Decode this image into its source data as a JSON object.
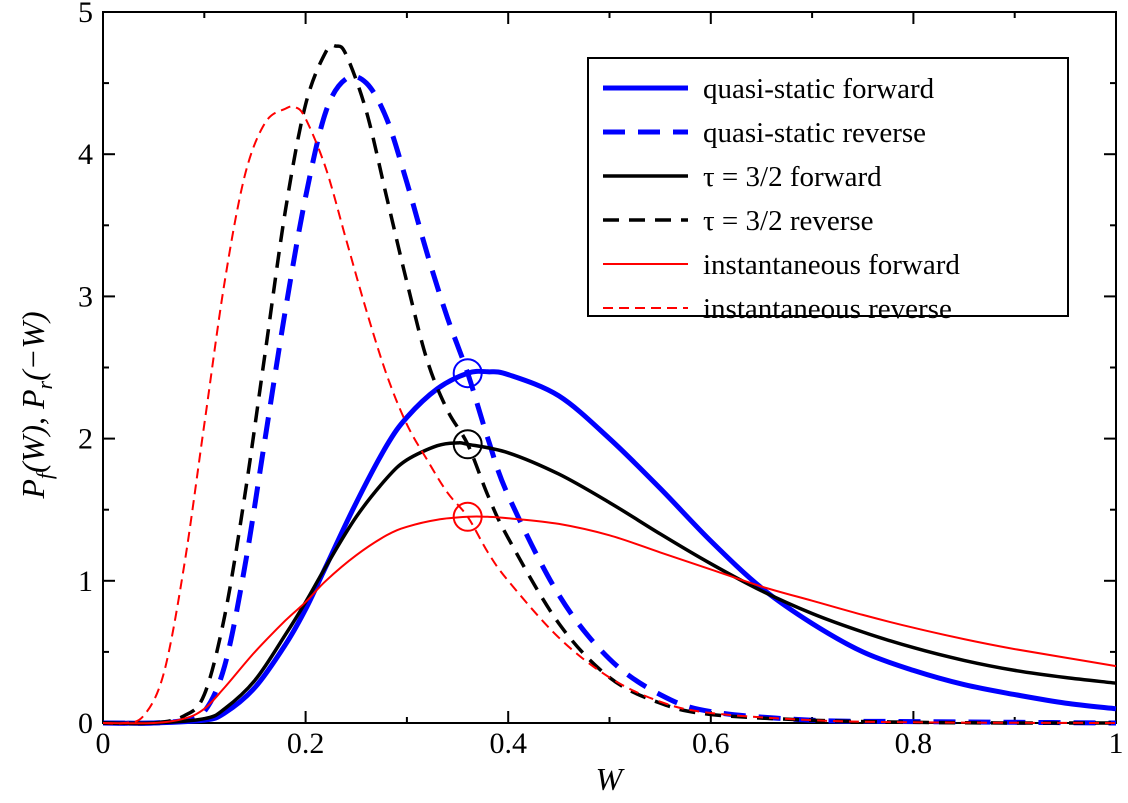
{
  "chart_data": {
    "type": "line",
    "xlabel": "W",
    "ylabel_parts": [
      "P",
      "f",
      "(W),  ",
      "P",
      "r",
      "(−W)"
    ],
    "xlim": [
      0,
      1
    ],
    "ylim": [
      0,
      5
    ],
    "x_ticks": [
      0,
      0.2,
      0.4,
      0.6,
      0.8,
      1
    ],
    "x_tick_labels": [
      "0",
      "0.2",
      "0.4",
      "0.6",
      "0.8",
      "1"
    ],
    "y_ticks": [
      0,
      1,
      2,
      3,
      4,
      5
    ],
    "y_tick_labels": [
      "0",
      "1",
      "2",
      "3",
      "4",
      "5"
    ],
    "grid": false,
    "legend_position": "top-right",
    "series": [
      {
        "name": "quasi-static forward",
        "color": "#0000ff",
        "style": "solid",
        "width": "thick",
        "x": [
          0,
          0.05,
          0.1,
          0.12,
          0.15,
          0.18,
          0.2,
          0.22,
          0.25,
          0.28,
          0.3,
          0.33,
          0.36,
          0.38,
          0.4,
          0.45,
          0.5,
          0.55,
          0.6,
          0.65,
          0.7,
          0.75,
          0.8,
          0.85,
          0.9,
          0.95,
          1.0
        ],
        "y": [
          0,
          0,
          0.02,
          0.07,
          0.25,
          0.55,
          0.8,
          1.1,
          1.55,
          1.95,
          2.15,
          2.35,
          2.46,
          2.47,
          2.45,
          2.3,
          2.0,
          1.65,
          1.28,
          0.95,
          0.7,
          0.5,
          0.37,
          0.27,
          0.2,
          0.14,
          0.1
        ]
      },
      {
        "name": "quasi-static reverse",
        "color": "#0000ff",
        "style": "dashed",
        "width": "thick",
        "x": [
          0,
          0.05,
          0.08,
          0.1,
          0.12,
          0.14,
          0.16,
          0.18,
          0.2,
          0.22,
          0.24,
          0.26,
          0.28,
          0.3,
          0.32,
          0.34,
          0.36,
          0.38,
          0.4,
          0.45,
          0.5,
          0.55,
          0.6,
          0.7,
          0.8,
          0.9,
          1.0
        ],
        "y": [
          0,
          0,
          0.02,
          0.08,
          0.4,
          1.1,
          2.0,
          2.9,
          3.7,
          4.3,
          4.53,
          4.5,
          4.25,
          3.8,
          3.3,
          2.85,
          2.46,
          2.0,
          1.6,
          0.9,
          0.45,
          0.2,
          0.08,
          0.02,
          0.01,
          0.005,
          0
        ]
      },
      {
        "name": "τ = 3/2  forward",
        "color": "#000000",
        "style": "solid",
        "width": "medium",
        "x": [
          0,
          0.05,
          0.1,
          0.12,
          0.15,
          0.18,
          0.2,
          0.22,
          0.25,
          0.28,
          0.3,
          0.33,
          0.35,
          0.36,
          0.4,
          0.45,
          0.5,
          0.55,
          0.6,
          0.65,
          0.7,
          0.75,
          0.8,
          0.85,
          0.9,
          0.95,
          1.0
        ],
        "y": [
          0,
          0,
          0.03,
          0.1,
          0.3,
          0.62,
          0.85,
          1.1,
          1.45,
          1.72,
          1.85,
          1.95,
          1.97,
          1.96,
          1.9,
          1.75,
          1.55,
          1.33,
          1.12,
          0.93,
          0.77,
          0.64,
          0.53,
          0.44,
          0.37,
          0.32,
          0.28
        ]
      },
      {
        "name": "τ = 3/2  reverse",
        "color": "#000000",
        "style": "dashed",
        "width": "medium",
        "x": [
          0,
          0.05,
          0.08,
          0.1,
          0.12,
          0.14,
          0.16,
          0.18,
          0.2,
          0.22,
          0.23,
          0.24,
          0.26,
          0.28,
          0.3,
          0.32,
          0.34,
          0.36,
          0.38,
          0.4,
          0.45,
          0.5,
          0.55,
          0.6,
          0.7,
          0.8,
          0.9,
          1.0
        ],
        "y": [
          0,
          0,
          0.05,
          0.2,
          0.75,
          1.6,
          2.6,
          3.6,
          4.35,
          4.72,
          4.76,
          4.7,
          4.3,
          3.7,
          3.1,
          2.55,
          2.2,
          1.96,
          1.6,
          1.3,
          0.7,
          0.32,
          0.14,
          0.06,
          0.02,
          0.005,
          0,
          0
        ]
      },
      {
        "name": "instantaneous forward",
        "color": "#ff0000",
        "style": "solid",
        "width": "thin",
        "x": [
          0,
          0.05,
          0.08,
          0.1,
          0.12,
          0.15,
          0.18,
          0.2,
          0.22,
          0.25,
          0.28,
          0.3,
          0.33,
          0.36,
          0.38,
          0.4,
          0.45,
          0.5,
          0.55,
          0.6,
          0.65,
          0.7,
          0.75,
          0.8,
          0.85,
          0.9,
          0.95,
          1.0
        ],
        "y": [
          0,
          0,
          0.03,
          0.1,
          0.25,
          0.5,
          0.72,
          0.85,
          1.0,
          1.18,
          1.32,
          1.38,
          1.43,
          1.45,
          1.45,
          1.44,
          1.4,
          1.32,
          1.2,
          1.08,
          0.96,
          0.86,
          0.76,
          0.67,
          0.59,
          0.52,
          0.46,
          0.4
        ]
      },
      {
        "name": "instantaneous reverse",
        "color": "#ff0000",
        "style": "dashed",
        "width": "thin",
        "x": [
          0,
          0.02,
          0.04,
          0.06,
          0.08,
          0.1,
          0.12,
          0.14,
          0.16,
          0.18,
          0.19,
          0.2,
          0.22,
          0.24,
          0.26,
          0.28,
          0.3,
          0.32,
          0.34,
          0.36,
          0.38,
          0.4,
          0.45,
          0.5,
          0.55,
          0.6,
          0.7,
          0.8,
          1.0
        ],
        "y": [
          0,
          0,
          0.05,
          0.35,
          1.1,
          2.1,
          3.1,
          3.85,
          4.22,
          4.32,
          4.33,
          4.25,
          3.9,
          3.4,
          2.9,
          2.45,
          2.1,
          1.85,
          1.62,
          1.45,
          1.2,
          1.0,
          0.6,
          0.32,
          0.15,
          0.07,
          0.02,
          0.005,
          0
        ]
      }
    ],
    "markers": [
      {
        "name": "quasi-static crossing",
        "x": 0.36,
        "y": 2.46,
        "color": "#0000ff"
      },
      {
        "name": "τ = 3/2 crossing",
        "x": 0.36,
        "y": 1.96,
        "color": "#000000"
      },
      {
        "name": "instantaneous crossing",
        "x": 0.36,
        "y": 1.45,
        "color": "#ff0000"
      }
    ]
  }
}
